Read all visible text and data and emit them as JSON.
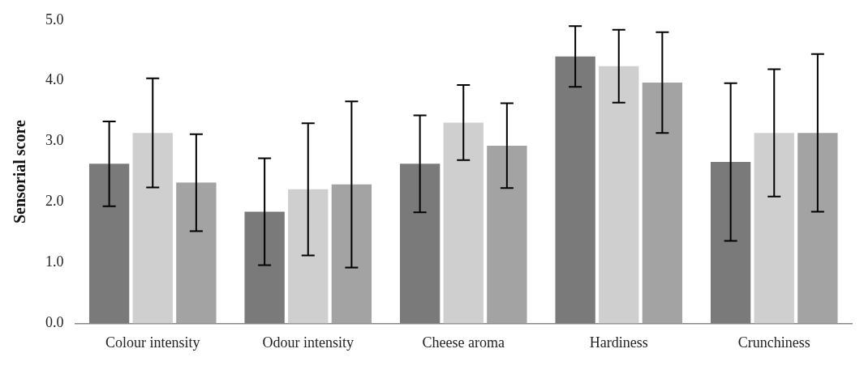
{
  "chart_data": {
    "type": "bar",
    "ylabel": "Sensorial score",
    "categories": [
      "Colour intensity",
      "Odour intensity",
      "Cheese aroma",
      "Hardiness",
      "Crunchiness"
    ],
    "series": [
      {
        "color": "#7a7a7a",
        "values": [
          2.63,
          1.84,
          2.63,
          4.4,
          2.66
        ],
        "errors": [
          0.7,
          0.88,
          0.8,
          0.5,
          1.3
        ]
      },
      {
        "color": "#cfcfcf",
        "values": [
          3.14,
          2.21,
          3.31,
          4.24,
          3.14
        ],
        "errors": [
          0.9,
          1.09,
          0.62,
          0.6,
          1.05
        ]
      },
      {
        "color": "#a3a3a3",
        "values": [
          2.32,
          2.29,
          2.93,
          3.97,
          3.14
        ],
        "errors": [
          0.8,
          1.37,
          0.7,
          0.83,
          1.3
        ]
      }
    ],
    "ylim": [
      0,
      5
    ],
    "yticks": [
      {
        "value": 0,
        "label": "0.0"
      },
      {
        "value": 1,
        "label": "1.0"
      },
      {
        "value": 2,
        "label": "2.0"
      },
      {
        "value": 3,
        "label": "3.0"
      },
      {
        "value": 4,
        "label": "4.0"
      },
      {
        "value": 5,
        "label": "5.0"
      }
    ],
    "grid": false,
    "legend": false
  }
}
